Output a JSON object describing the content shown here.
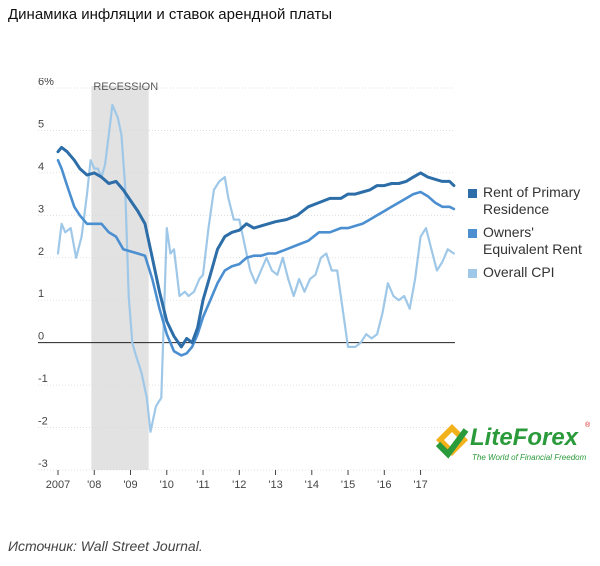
{
  "header": {
    "title": "Динамика инфляции и ставок арендной платы"
  },
  "source": "Источник: Wall Street Journal.",
  "logo": {
    "brand": "LiteForex",
    "tagline": "The World of Financial Freedom",
    "reg": "®"
  },
  "chart_data": {
    "type": "line",
    "title": "Динамика инфляции и ставок арендной платы",
    "xlabel": "",
    "ylabel": "",
    "ylim": [
      -3,
      6
    ],
    "xlim": [
      2007.0,
      2017.95
    ],
    "y_ticks": [
      -3,
      -2,
      -1,
      0,
      1,
      2,
      3,
      4,
      5,
      6
    ],
    "y_tick_labels": [
      "-3",
      "-2",
      "-1",
      "0",
      "1",
      "2",
      "3",
      "4",
      "5",
      "6%"
    ],
    "x_ticks": [
      2007,
      2008,
      2009,
      2010,
      2011,
      2012,
      2013,
      2014,
      2015,
      2016,
      2017
    ],
    "x_tick_labels": [
      "2007",
      "'08",
      "'09",
      "'10",
      "'11",
      "'12",
      "'13",
      "'14",
      "'15",
      "'16",
      "'17"
    ],
    "grid": "horizontal",
    "legend_position": "right",
    "shaded_regions": [
      {
        "label": "RECESSION",
        "x0": 2007.92,
        "x1": 2009.5,
        "color": "#e2e2e2"
      }
    ],
    "series": [
      {
        "name": "Rent of Primary Residence",
        "color": "#2d6ea8",
        "x": [
          2007.0,
          2007.1,
          2007.25,
          2007.45,
          2007.6,
          2007.8,
          2008.0,
          2008.2,
          2008.4,
          2008.6,
          2008.8,
          2009.0,
          2009.2,
          2009.4,
          2009.6,
          2009.8,
          2010.0,
          2010.2,
          2010.4,
          2010.55,
          2010.7,
          2010.85,
          2011.0,
          2011.2,
          2011.4,
          2011.6,
          2011.8,
          2012.0,
          2012.2,
          2012.4,
          2012.6,
          2012.8,
          2013.0,
          2013.3,
          2013.6,
          2013.9,
          2014.2,
          2014.5,
          2014.8,
          2015.0,
          2015.2,
          2015.4,
          2015.6,
          2015.8,
          2016.0,
          2016.2,
          2016.4,
          2016.6,
          2016.8,
          2017.0,
          2017.2,
          2017.4,
          2017.6,
          2017.8,
          2017.92
        ],
        "values": [
          4.5,
          4.6,
          4.5,
          4.3,
          4.1,
          3.95,
          4.0,
          3.9,
          3.75,
          3.8,
          3.6,
          3.35,
          3.1,
          2.8,
          2.0,
          1.2,
          0.5,
          0.15,
          -0.1,
          0.1,
          0.0,
          0.35,
          1.0,
          1.6,
          2.2,
          2.5,
          2.6,
          2.65,
          2.8,
          2.7,
          2.75,
          2.8,
          2.85,
          2.9,
          3.0,
          3.2,
          3.3,
          3.4,
          3.4,
          3.5,
          3.5,
          3.55,
          3.6,
          3.7,
          3.7,
          3.75,
          3.75,
          3.8,
          3.9,
          4.0,
          3.9,
          3.85,
          3.8,
          3.8,
          3.7
        ]
      },
      {
        "name": "Owners' Equivalent Rent",
        "color": "#4b8fd1",
        "x": [
          2007.0,
          2007.1,
          2007.25,
          2007.45,
          2007.6,
          2007.8,
          2008.0,
          2008.2,
          2008.4,
          2008.6,
          2008.8,
          2009.0,
          2009.2,
          2009.4,
          2009.6,
          2009.8,
          2010.0,
          2010.2,
          2010.4,
          2010.55,
          2010.7,
          2010.85,
          2011.0,
          2011.2,
          2011.4,
          2011.6,
          2011.8,
          2012.0,
          2012.2,
          2012.4,
          2012.6,
          2012.8,
          2013.0,
          2013.3,
          2013.6,
          2013.9,
          2014.2,
          2014.5,
          2014.8,
          2015.0,
          2015.2,
          2015.4,
          2015.6,
          2015.8,
          2016.0,
          2016.2,
          2016.4,
          2016.6,
          2016.8,
          2017.0,
          2017.2,
          2017.4,
          2017.6,
          2017.8,
          2017.92
        ],
        "values": [
          4.3,
          4.1,
          3.7,
          3.2,
          3.0,
          2.8,
          2.8,
          2.8,
          2.6,
          2.5,
          2.2,
          2.15,
          2.1,
          2.05,
          1.5,
          0.8,
          0.2,
          -0.2,
          -0.3,
          -0.25,
          -0.1,
          0.2,
          0.6,
          1.0,
          1.4,
          1.7,
          1.8,
          1.85,
          2.0,
          2.05,
          2.05,
          2.1,
          2.1,
          2.2,
          2.3,
          2.4,
          2.6,
          2.6,
          2.7,
          2.7,
          2.75,
          2.8,
          2.9,
          3.0,
          3.1,
          3.2,
          3.3,
          3.4,
          3.5,
          3.55,
          3.45,
          3.3,
          3.2,
          3.2,
          3.15
        ]
      },
      {
        "name": "Overall CPI",
        "color": "#9fc8e8",
        "x": [
          2007.0,
          2007.1,
          2007.2,
          2007.35,
          2007.5,
          2007.65,
          2007.8,
          2007.9,
          2008.0,
          2008.1,
          2008.2,
          2008.3,
          2008.4,
          2008.5,
          2008.65,
          2008.75,
          2008.85,
          2008.95,
          2009.05,
          2009.15,
          2009.3,
          2009.45,
          2009.55,
          2009.7,
          2009.85,
          2010.0,
          2010.1,
          2010.2,
          2010.35,
          2010.5,
          2010.6,
          2010.75,
          2010.9,
          2011.0,
          2011.15,
          2011.3,
          2011.45,
          2011.6,
          2011.7,
          2011.85,
          2012.0,
          2012.15,
          2012.3,
          2012.45,
          2012.6,
          2012.75,
          2012.9,
          2013.05,
          2013.2,
          2013.35,
          2013.5,
          2013.65,
          2013.8,
          2013.95,
          2014.1,
          2014.25,
          2014.4,
          2014.55,
          2014.7,
          2014.85,
          2015.0,
          2015.1,
          2015.2,
          2015.35,
          2015.5,
          2015.65,
          2015.8,
          2015.95,
          2016.1,
          2016.25,
          2016.4,
          2016.55,
          2016.7,
          2016.85,
          2017.0,
          2017.15,
          2017.3,
          2017.45,
          2017.6,
          2017.75,
          2017.92
        ],
        "values": [
          2.1,
          2.8,
          2.6,
          2.7,
          2.0,
          2.5,
          3.5,
          4.3,
          4.1,
          4.1,
          3.9,
          4.2,
          4.9,
          5.6,
          5.3,
          4.9,
          3.7,
          1.1,
          0.0,
          -0.3,
          -0.7,
          -1.3,
          -2.1,
          -1.5,
          -1.3,
          2.7,
          2.1,
          2.2,
          1.1,
          1.2,
          1.1,
          1.2,
          1.5,
          1.6,
          2.7,
          3.6,
          3.8,
          3.9,
          3.4,
          2.9,
          2.9,
          2.3,
          1.7,
          1.4,
          1.7,
          2.0,
          1.7,
          1.6,
          2.0,
          1.5,
          1.1,
          1.5,
          1.2,
          1.5,
          1.6,
          2.0,
          2.1,
          1.7,
          1.7,
          0.8,
          -0.1,
          -0.1,
          -0.1,
          0.0,
          0.2,
          0.1,
          0.2,
          0.7,
          1.4,
          1.1,
          1.0,
          1.1,
          0.8,
          1.5,
          2.5,
          2.7,
          2.2,
          1.7,
          1.9,
          2.2,
          2.1
        ]
      }
    ]
  }
}
